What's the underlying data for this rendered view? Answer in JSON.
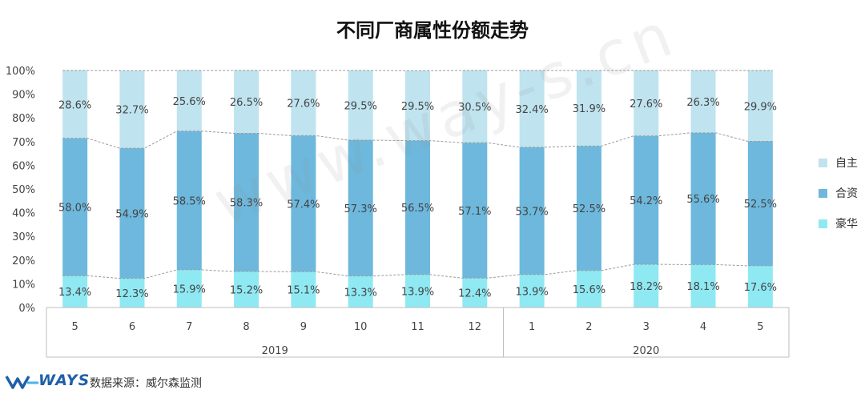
{
  "title": "不同厂商属性份额走势",
  "watermark": "www.way-s.cn",
  "footer": {
    "logo": "WAYS",
    "source": "数据来源：威尔森监测"
  },
  "chart_data": {
    "type": "bar",
    "stacked": true,
    "title": "不同厂商属性份额走势",
    "ylim": [
      0,
      100
    ],
    "yticks": [
      "0%",
      "10%",
      "20%",
      "30%",
      "40%",
      "50%",
      "60%",
      "70%",
      "80%",
      "90%",
      "100%"
    ],
    "categories": [
      "5",
      "6",
      "7",
      "8",
      "9",
      "10",
      "11",
      "12",
      "1",
      "2",
      "3",
      "4",
      "5"
    ],
    "groups": [
      {
        "label": "2019",
        "count": 8
      },
      {
        "label": "2020",
        "count": 5
      }
    ],
    "legend_position": "right",
    "series": [
      {
        "name": "豪华",
        "color": "#8fe9f3",
        "values": [
          13.4,
          12.3,
          15.9,
          15.2,
          15.1,
          13.3,
          13.9,
          12.4,
          13.9,
          15.6,
          18.2,
          18.1,
          17.6
        ]
      },
      {
        "name": "合资",
        "color": "#6db8dc",
        "values": [
          58.0,
          54.9,
          58.5,
          58.3,
          57.4,
          57.3,
          56.5,
          57.1,
          53.7,
          52.5,
          54.2,
          55.6,
          52.5
        ]
      },
      {
        "name": "自主",
        "color": "#bfe3ef",
        "values": [
          28.6,
          32.7,
          25.6,
          26.5,
          27.6,
          29.5,
          29.5,
          30.5,
          32.4,
          31.9,
          27.6,
          26.3,
          29.9
        ]
      }
    ]
  }
}
